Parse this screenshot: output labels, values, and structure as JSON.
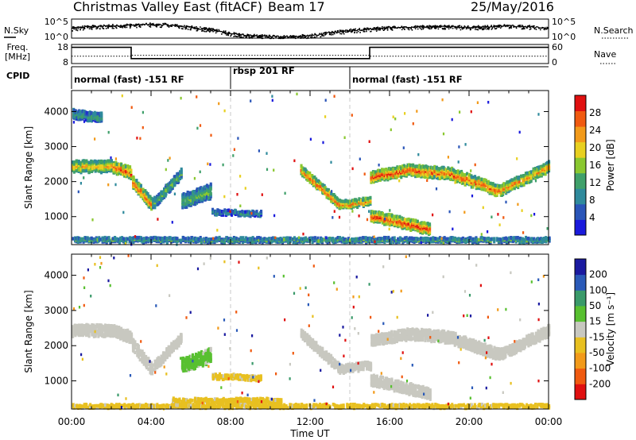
{
  "header": {
    "title": "Christmas Valley East (fitACF)",
    "beam": "Beam 17",
    "date": "25/May/2016"
  },
  "labels": {
    "nsky": "N.Sky",
    "nsearch": "N.Search",
    "freq": "Freq.",
    "freq_unit": "[MHz]",
    "nave": "Nave",
    "cpid": "CPID",
    "time_axis": "Time UT"
  },
  "cpid_segments": [
    {
      "label": "normal (fast) -151 RF",
      "start_h": 0,
      "end_h": 8
    },
    {
      "label": "rbsp 201 RF",
      "start_h": 8,
      "end_h": 14
    },
    {
      "label": "normal (fast) -151 RF",
      "start_h": 14,
      "end_h": 24
    }
  ],
  "colors": {
    "frame": "#000000",
    "dash": "#c8c8c8",
    "power": [
      "#1a1adc",
      "#2a55b8",
      "#2f8a9c",
      "#3fa06a",
      "#8ac830",
      "#e8d020",
      "#f29a1a",
      "#f05a10",
      "#e01010"
    ],
    "velocity": [
      "#e01010",
      "#f05a10",
      "#f29a1a",
      "#e8c020",
      "#c8c8c0",
      "#58c030",
      "#3a9a6a",
      "#2a5ab8",
      "#1a1aa0"
    ]
  },
  "chart_data": [
    {
      "type": "line",
      "name": "noise",
      "left_axis_label": "N.Sky",
      "right_axis_label": "N.Search",
      "left_ticks": [
        "10^5",
        "10^0"
      ],
      "right_ticks": [
        "10^5",
        "10^0"
      ],
      "x": [
        0,
        1,
        2,
        3,
        4,
        5,
        6,
        7,
        8,
        9,
        10,
        11,
        12,
        13,
        14,
        15,
        16,
        17,
        18,
        19,
        20,
        21,
        22,
        23,
        24
      ],
      "sky": [
        2.6,
        3.0,
        3.2,
        3.4,
        3.6,
        3.4,
        2.8,
        2.2,
        1.2,
        0.6,
        0.4,
        0.4,
        0.6,
        1.4,
        2.0,
        2.4,
        2.8,
        2.8,
        3.0,
        3.0,
        2.8,
        3.0,
        3.2,
        3.0,
        2.4
      ],
      "ylim": [
        0,
        5
      ]
    },
    {
      "type": "line",
      "name": "frequency and nave",
      "left_ticks": [
        "18",
        "8"
      ],
      "right_ticks": [
        "60",
        "0"
      ],
      "freq_x": [
        0,
        3,
        3,
        15,
        15,
        24
      ],
      "freq_mhz": [
        16.5,
        16.5,
        10.6,
        10.6,
        16.5,
        16.5
      ],
      "nave_x": [
        0,
        3,
        3,
        15,
        15,
        24
      ],
      "nave": [
        23,
        23,
        26,
        26,
        23,
        23
      ],
      "freq_ylim": [
        8,
        18
      ],
      "nave_ylim": [
        0,
        60
      ]
    },
    {
      "type": "heatmap",
      "name": "Power",
      "xlabel": "Time UT",
      "ylabel": "Slant Range [km]",
      "xlim": [
        0,
        24
      ],
      "ylim": [
        200,
        4600
      ],
      "x_ticks": [
        "00:00",
        "04:00",
        "08:00",
        "12:00",
        "16:00",
        "20:00",
        "00:00"
      ],
      "y_ticks": [
        1000,
        2000,
        3000,
        4000
      ],
      "colorbar": {
        "title": "Power",
        "unit": "[dB]",
        "ticks": [
          "4",
          "8",
          "12",
          "16",
          "20",
          "24",
          "28"
        ],
        "range": [
          0,
          30
        ]
      },
      "features": [
        {
          "t0": 0.0,
          "t1": 2.0,
          "range_km": [
            2400,
            2400
          ],
          "thickness_km": 320,
          "value_db": 18
        },
        {
          "t0": 2.0,
          "t1": 3.0,
          "range_km": [
            2400,
            2200
          ],
          "thickness_km": 320,
          "value_db": 22
        },
        {
          "t0": 3.0,
          "t1": 4.0,
          "range_km": [
            2000,
            1300
          ],
          "thickness_km": 340,
          "value_db": 22
        },
        {
          "t0": 4.0,
          "t1": 5.5,
          "range_km": [
            1300,
            2200
          ],
          "thickness_km": 280,
          "value_db": 12
        },
        {
          "t0": 5.5,
          "t1": 7.0,
          "range_km": [
            1400,
            1700
          ],
          "thickness_km": 400,
          "value_db": 12
        },
        {
          "t0": 7.0,
          "t1": 9.5,
          "range_km": [
            1100,
            1050
          ],
          "thickness_km": 140,
          "value_db": 8
        },
        {
          "t0": 11.5,
          "t1": 13.5,
          "range_km": [
            2300,
            1300
          ],
          "thickness_km": 260,
          "value_db": 22
        },
        {
          "t0": 13.5,
          "t1": 15.0,
          "range_km": [
            1300,
            1400
          ],
          "thickness_km": 220,
          "value_db": 20
        },
        {
          "t0": 15.0,
          "t1": 17.0,
          "range_km": [
            2100,
            2300
          ],
          "thickness_km": 300,
          "value_db": 24
        },
        {
          "t0": 17.0,
          "t1": 19.0,
          "range_km": [
            2300,
            2200
          ],
          "thickness_km": 320,
          "value_db": 22
        },
        {
          "t0": 19.0,
          "t1": 21.5,
          "range_km": [
            2200,
            1700
          ],
          "thickness_km": 320,
          "value_db": 22
        },
        {
          "t0": 21.5,
          "t1": 24.0,
          "range_km": [
            1700,
            2400
          ],
          "thickness_km": 300,
          "value_db": 20
        },
        {
          "t0": 15.0,
          "t1": 18.0,
          "range_km": [
            1000,
            600
          ],
          "thickness_km": 300,
          "value_db": 24
        },
        {
          "t0": 0.0,
          "t1": 24.0,
          "range_km": [
            300,
            300
          ],
          "thickness_km": 120,
          "value_db": 10
        },
        {
          "t0": 0.0,
          "t1": 1.5,
          "range_km": [
            3900,
            3800
          ],
          "thickness_km": 260,
          "value_db": 10
        }
      ]
    },
    {
      "type": "heatmap",
      "name": "Velocity",
      "xlabel": "Time UT",
      "ylabel": "Slant Range [km]",
      "xlim": [
        0,
        24
      ],
      "ylim": [
        200,
        4600
      ],
      "x_ticks": [
        "00:00",
        "04:00",
        "08:00",
        "12:00",
        "16:00",
        "20:00",
        "00:00"
      ],
      "y_ticks": [
        1000,
        2000,
        3000,
        4000
      ],
      "colorbar": {
        "title": "Velocity",
        "unit": "[m s⁻¹]",
        "ticks": [
          "-200",
          "-100",
          "-50",
          "-15",
          "15",
          "50",
          "100",
          "200"
        ],
        "range": [
          -250,
          250
        ]
      },
      "features": [
        {
          "t0": 0.0,
          "t1": 2.0,
          "range_km": [
            2400,
            2400
          ],
          "thickness_km": 320,
          "value_ms": 0
        },
        {
          "t0": 2.0,
          "t1": 3.0,
          "range_km": [
            2400,
            2200
          ],
          "thickness_km": 320,
          "value_ms": 0
        },
        {
          "t0": 3.0,
          "t1": 4.0,
          "range_km": [
            2000,
            1300
          ],
          "thickness_km": 340,
          "value_ms": 0
        },
        {
          "t0": 4.0,
          "t1": 5.5,
          "range_km": [
            1300,
            2200
          ],
          "thickness_km": 280,
          "value_ms": 0
        },
        {
          "t0": 5.5,
          "t1": 7.0,
          "range_km": [
            1400,
            1700
          ],
          "thickness_km": 400,
          "value_ms": 40
        },
        {
          "t0": 7.0,
          "t1": 9.5,
          "range_km": [
            1100,
            1050
          ],
          "thickness_km": 140,
          "value_ms": -40
        },
        {
          "t0": 11.5,
          "t1": 13.5,
          "range_km": [
            2300,
            1300
          ],
          "thickness_km": 260,
          "value_ms": 0
        },
        {
          "t0": 13.5,
          "t1": 15.0,
          "range_km": [
            1300,
            1400
          ],
          "thickness_km": 220,
          "value_ms": 0
        },
        {
          "t0": 15.0,
          "t1": 17.0,
          "range_km": [
            2100,
            2300
          ],
          "thickness_km": 300,
          "value_ms": 0
        },
        {
          "t0": 17.0,
          "t1": 19.0,
          "range_km": [
            2300,
            2200
          ],
          "thickness_km": 320,
          "value_ms": 0
        },
        {
          "t0": 19.0,
          "t1": 21.5,
          "range_km": [
            2200,
            1700
          ],
          "thickness_km": 320,
          "value_ms": 0
        },
        {
          "t0": 21.5,
          "t1": 24.0,
          "range_km": [
            1700,
            2400
          ],
          "thickness_km": 300,
          "value_ms": 0
        },
        {
          "t0": 15.0,
          "t1": 18.0,
          "range_km": [
            1000,
            600
          ],
          "thickness_km": 300,
          "value_ms": 0
        },
        {
          "t0": 5.0,
          "t1": 10.5,
          "range_km": [
            400,
            400
          ],
          "thickness_km": 140,
          "value_ms": -40
        },
        {
          "t0": 0.0,
          "t1": 24.0,
          "range_km": [
            250,
            250
          ],
          "thickness_km": 100,
          "value_ms": -40
        }
      ]
    }
  ]
}
